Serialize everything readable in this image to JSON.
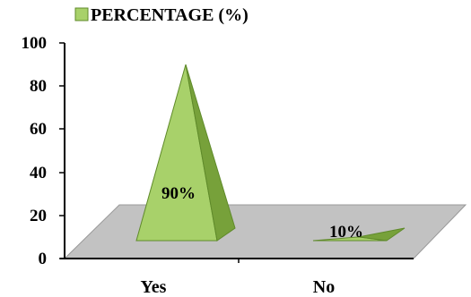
{
  "chart_data": {
    "type": "bar",
    "style": "3d-pyramid",
    "categories": [
      "Yes",
      "No"
    ],
    "series": [
      {
        "name": "PERCENTAGE (%)",
        "values": [
          90,
          10
        ]
      }
    ],
    "data_labels": [
      "90%",
      "10%"
    ],
    "ylim": [
      0,
      100
    ],
    "y_ticks": [
      "0",
      "20",
      "40",
      "60",
      "80",
      "100"
    ],
    "grid": false,
    "legend_position": "top",
    "colors": {
      "pyramid_light": "#a8d16a",
      "pyramid_dark": "#77a13a",
      "pyramid_edge": "#5f8a2a",
      "floor": "#c2c2c2",
      "floor_edge": "#999999",
      "axis": "#000000"
    }
  }
}
